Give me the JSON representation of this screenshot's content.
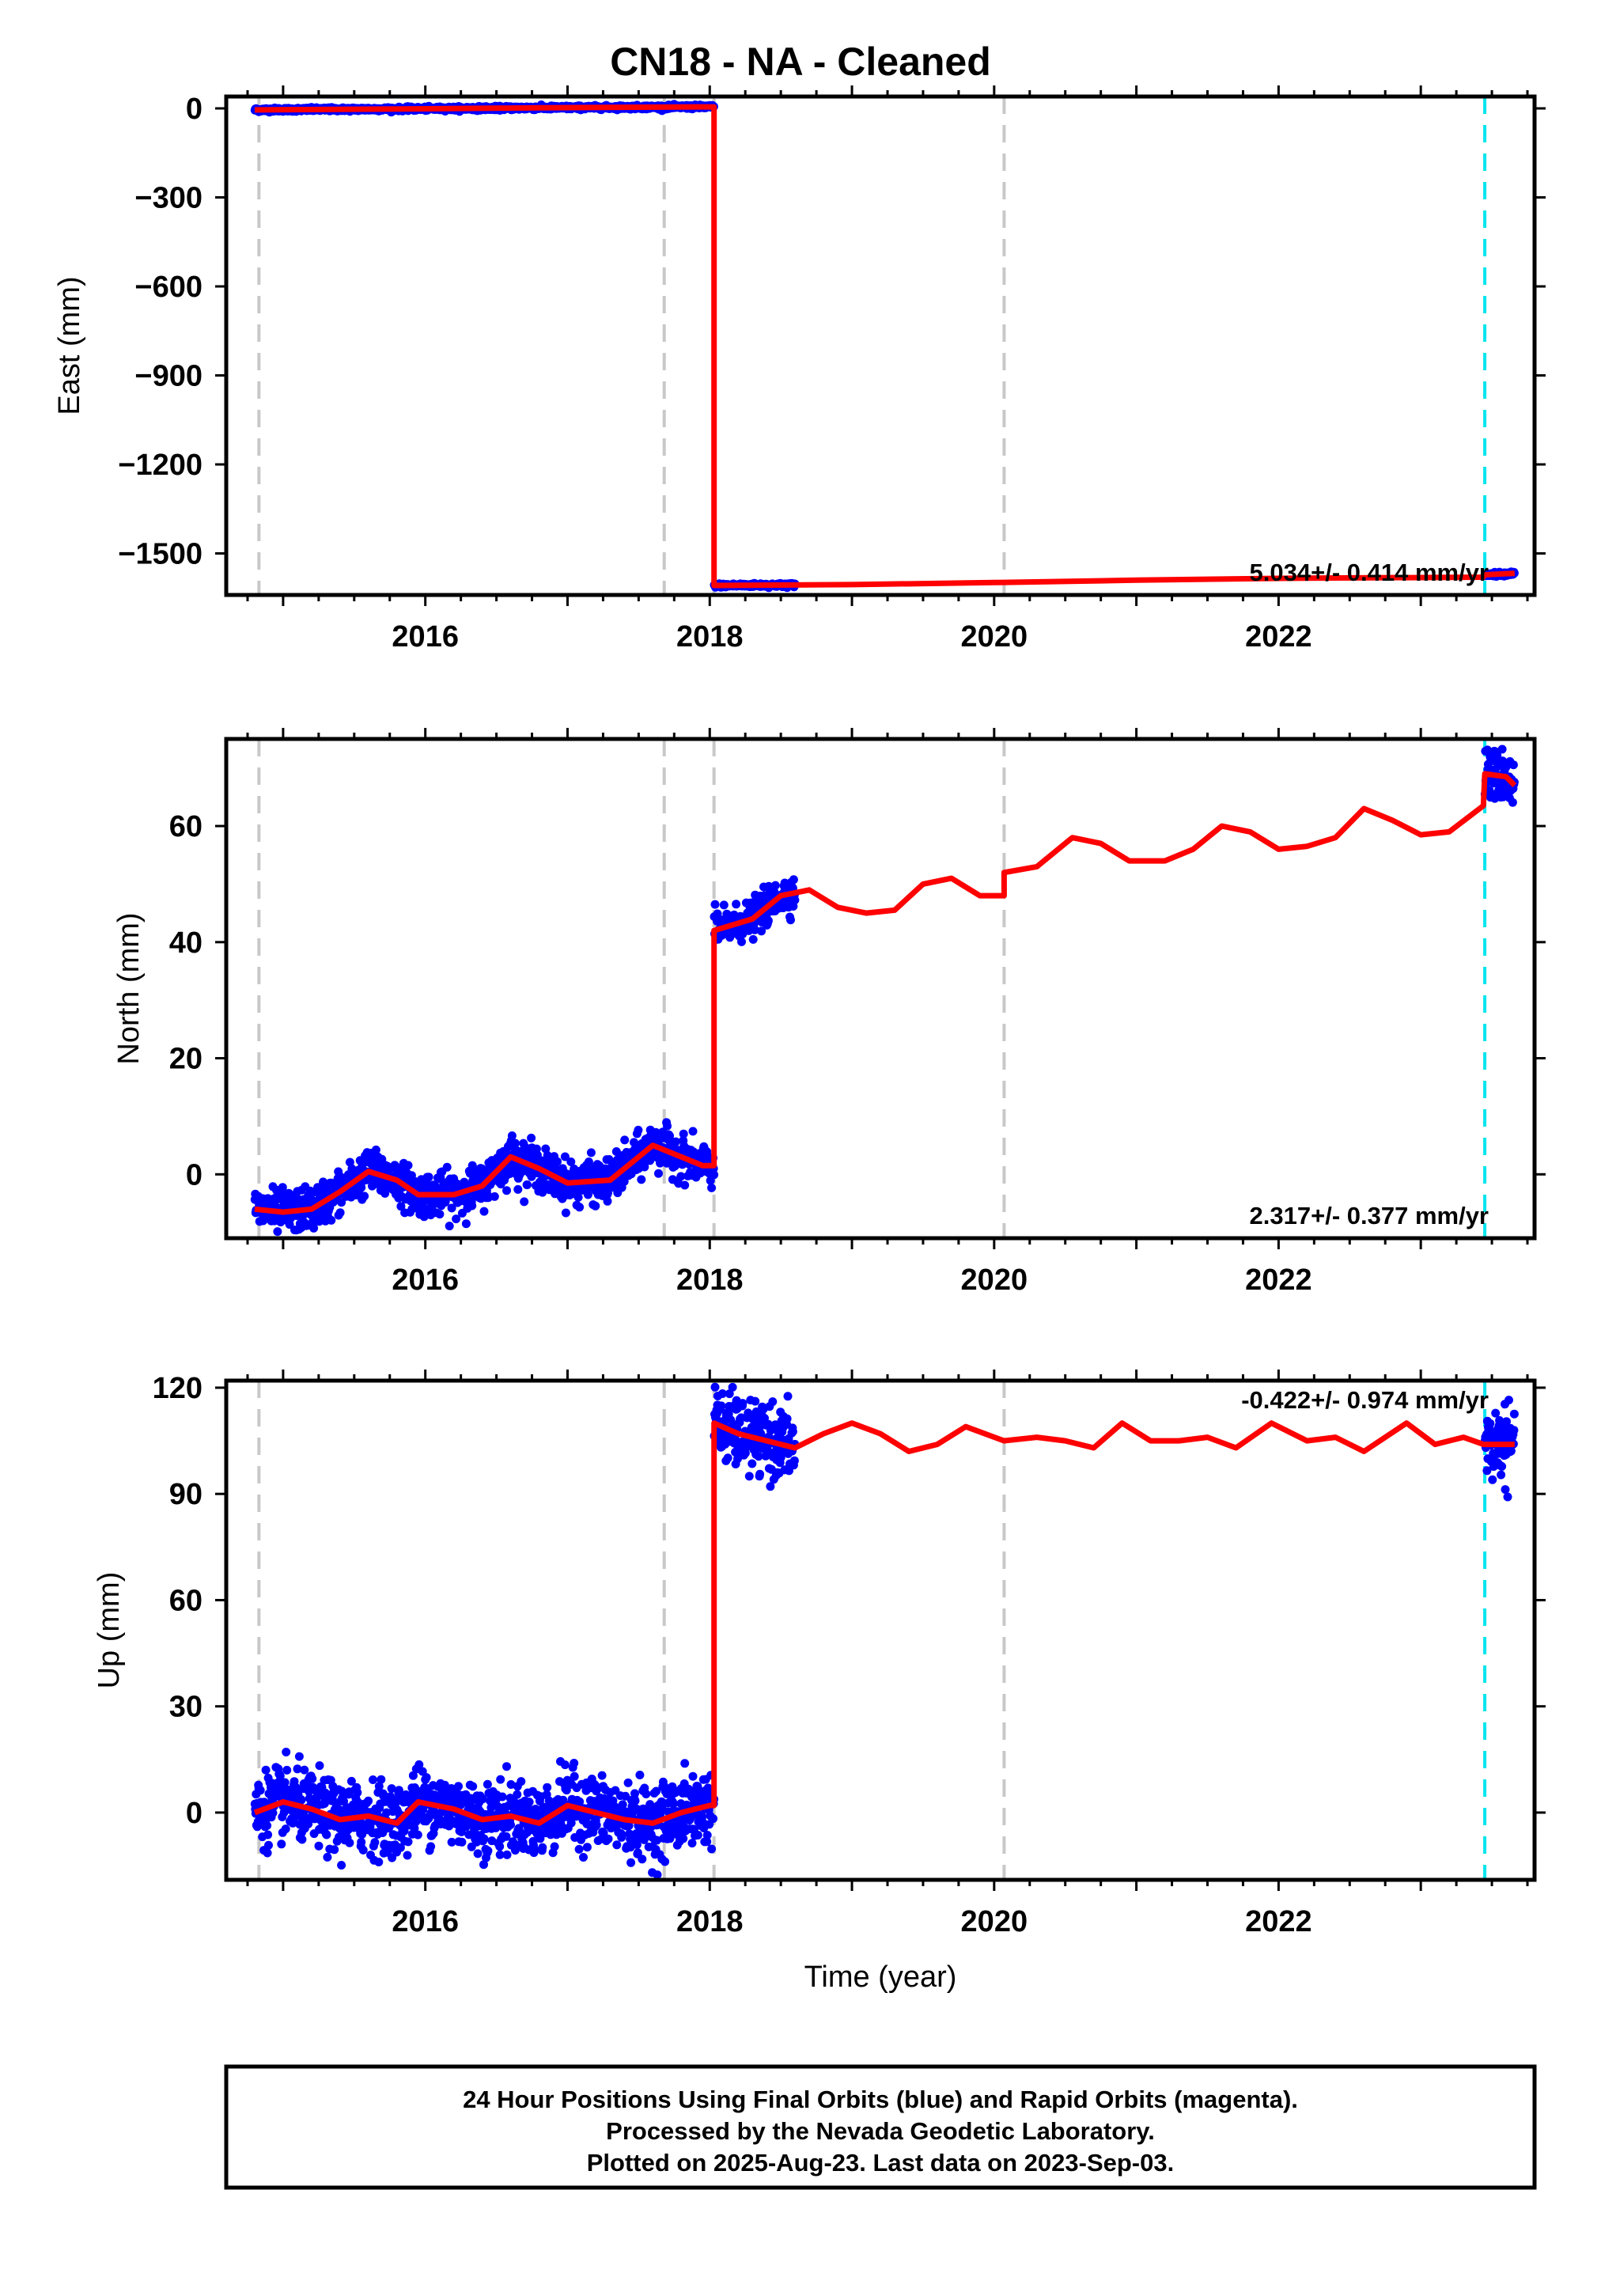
{
  "title": "CN18  - NA - Cleaned",
  "colors": {
    "final_orbits": "#0000ff",
    "model": "#ff0000",
    "equipment_change": "#c8c8c8",
    "earthquake": "#00e5ee"
  },
  "chart_data": [
    {
      "type": "scatter",
      "name": "east",
      "ylabel": "East (mm)",
      "xlabel": "",
      "xlim": [
        2014.6,
        2023.8
      ],
      "ylim": [
        -1640,
        40
      ],
      "xticks": [
        2016,
        2018,
        2020,
        2022
      ],
      "yticks": [
        0,
        -300,
        -600,
        -900,
        -1200,
        -1500
      ],
      "grey_lines": [
        2014.83,
        2017.68,
        2018.03,
        2020.07
      ],
      "cyan_lines": [
        2023.45
      ],
      "rate_text": "5.034+/- 0.414 mm/yr",
      "rate_position": "bottom-right",
      "model": [
        [
          2014.8,
          -5
        ],
        [
          2015.8,
          -2
        ],
        [
          2016.8,
          2
        ],
        [
          2017.9,
          5
        ],
        [
          2018.03,
          5
        ],
        [
          2018.03,
          -1608
        ],
        [
          2019,
          -1605
        ],
        [
          2020,
          -1598
        ],
        [
          2021,
          -1590
        ],
        [
          2022,
          -1584
        ],
        [
          2023.44,
          -1580
        ],
        [
          2023.45,
          -1572
        ],
        [
          2023.66,
          -1567
        ]
      ],
      "obs_segments": [
        [
          2014.8,
          2015.85,
          -6,
          -1,
          3
        ],
        [
          2015.85,
          2018.03,
          -2,
          7,
          3
        ],
        [
          2018.03,
          2018.6,
          -1610,
          -1605,
          3
        ],
        [
          2023.45,
          2023.66,
          -1572,
          -1567,
          3
        ]
      ]
    },
    {
      "type": "scatter",
      "name": "north",
      "ylabel": "North (mm)",
      "xlabel": "",
      "xlim": [
        2014.6,
        2023.8
      ],
      "ylim": [
        -11,
        75
      ],
      "xticks": [
        2016,
        2018,
        2020,
        2022
      ],
      "yticks": [
        0,
        20,
        40,
        60
      ],
      "grey_lines": [
        2014.83,
        2017.68,
        2018.03,
        2020.07
      ],
      "cyan_lines": [
        2023.45
      ],
      "rate_text": "2.317+/- 0.377 mm/yr",
      "rate_position": "bottom-right",
      "model": [
        [
          2014.8,
          -6
        ],
        [
          2015,
          -6.5
        ],
        [
          2015.2,
          -6
        ],
        [
          2015.4,
          -3
        ],
        [
          2015.6,
          0.5
        ],
        [
          2015.8,
          -1
        ],
        [
          2015.95,
          -3.5
        ],
        [
          2016.2,
          -3.5
        ],
        [
          2016.4,
          -2
        ],
        [
          2016.6,
          3
        ],
        [
          2016.8,
          1
        ],
        [
          2017.0,
          -1.5
        ],
        [
          2017.3,
          -1
        ],
        [
          2017.5,
          3
        ],
        [
          2017.6,
          5
        ],
        [
          2017.8,
          3
        ],
        [
          2017.95,
          1.5
        ],
        [
          2018.03,
          1.5
        ],
        [
          2018.03,
          42
        ],
        [
          2018.3,
          44
        ],
        [
          2018.5,
          48
        ],
        [
          2018.7,
          49
        ],
        [
          2018.9,
          46
        ],
        [
          2019.1,
          45
        ],
        [
          2019.3,
          45.5
        ],
        [
          2019.5,
          50
        ],
        [
          2019.7,
          51
        ],
        [
          2019.9,
          48
        ],
        [
          2020.07,
          48
        ],
        [
          2020.07,
          52
        ],
        [
          2020.3,
          53
        ],
        [
          2020.55,
          58
        ],
        [
          2020.75,
          57
        ],
        [
          2020.95,
          54
        ],
        [
          2021.2,
          54
        ],
        [
          2021.4,
          56
        ],
        [
          2021.6,
          60
        ],
        [
          2021.8,
          59
        ],
        [
          2022.0,
          56
        ],
        [
          2022.2,
          56.5
        ],
        [
          2022.4,
          58
        ],
        [
          2022.6,
          63
        ],
        [
          2022.8,
          61
        ],
        [
          2023.0,
          58.5
        ],
        [
          2023.2,
          59
        ],
        [
          2023.44,
          63.5
        ],
        [
          2023.45,
          69
        ],
        [
          2023.6,
          68.5
        ],
        [
          2023.66,
          67
        ]
      ],
      "obs_segments": [
        [
          2014.8,
          2015.85,
          -7,
          -4,
          1.8
        ],
        [
          2015.85,
          2017.68,
          -3,
          3,
          1.8
        ],
        [
          2017.68,
          2018.03,
          1,
          4,
          1.8
        ],
        [
          2018.03,
          2018.6,
          42,
          50,
          1.5
        ],
        [
          2023.45,
          2023.66,
          68,
          69,
          2.2
        ]
      ]
    },
    {
      "type": "scatter",
      "name": "up",
      "ylabel": "Up (mm)",
      "xlabel": "Time (year)",
      "xlim": [
        2014.6,
        2023.8
      ],
      "ylim": [
        -19,
        122
      ],
      "xticks": [
        2016,
        2018,
        2020,
        2022
      ],
      "yticks": [
        0,
        30,
        60,
        90,
        120
      ],
      "grey_lines": [
        2014.83,
        2017.68,
        2018.03,
        2020.07
      ],
      "cyan_lines": [
        2023.45
      ],
      "rate_text": "-0.422+/- 0.974 mm/yr",
      "rate_position": "top-right",
      "model": [
        [
          2014.8,
          0
        ],
        [
          2015.0,
          3
        ],
        [
          2015.2,
          1
        ],
        [
          2015.4,
          -2
        ],
        [
          2015.6,
          -1
        ],
        [
          2015.8,
          -3
        ],
        [
          2015.95,
          3
        ],
        [
          2016.2,
          1
        ],
        [
          2016.4,
          -2
        ],
        [
          2016.6,
          -1
        ],
        [
          2016.8,
          -3
        ],
        [
          2017.0,
          2
        ],
        [
          2017.2,
          0
        ],
        [
          2017.4,
          -2
        ],
        [
          2017.6,
          -3
        ],
        [
          2017.8,
          0
        ],
        [
          2018.0,
          2
        ],
        [
          2018.03,
          2
        ],
        [
          2018.03,
          110
        ],
        [
          2018.2,
          107
        ],
        [
          2018.4,
          105
        ],
        [
          2018.6,
          103
        ],
        [
          2018.8,
          107
        ],
        [
          2019.0,
          110
        ],
        [
          2019.2,
          107
        ],
        [
          2019.4,
          102
        ],
        [
          2019.6,
          104
        ],
        [
          2019.8,
          109
        ],
        [
          2020.07,
          105
        ],
        [
          2020.3,
          106
        ],
        [
          2020.5,
          105
        ],
        [
          2020.7,
          103
        ],
        [
          2020.9,
          110
        ],
        [
          2021.1,
          105
        ],
        [
          2021.3,
          105
        ],
        [
          2021.5,
          106
        ],
        [
          2021.7,
          103
        ],
        [
          2021.95,
          110
        ],
        [
          2022.2,
          105
        ],
        [
          2022.4,
          106
        ],
        [
          2022.6,
          102
        ],
        [
          2022.9,
          110
        ],
        [
          2023.1,
          104
        ],
        [
          2023.3,
          106
        ],
        [
          2023.44,
          104
        ],
        [
          2023.66,
          104
        ]
      ],
      "obs_segments": [
        [
          2014.8,
          2015.85,
          0,
          0,
          5
        ],
        [
          2015.85,
          2017.68,
          0,
          0,
          5
        ],
        [
          2017.68,
          2018.03,
          0,
          0,
          5
        ],
        [
          2018.03,
          2018.6,
          106,
          103,
          5
        ],
        [
          2023.45,
          2023.66,
          104,
          104,
          5
        ]
      ]
    }
  ],
  "footer": {
    "line1": "24 Hour Positions Using Final Orbits (blue) and Rapid Orbits (magenta).",
    "line2": "Processed by the Nevada Geodetic Laboratory.",
    "line3": "Plotted on 2025-Aug-23. Last data on 2023-Sep-03."
  }
}
